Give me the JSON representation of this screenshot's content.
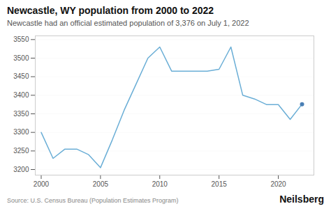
{
  "chart_data": {
    "type": "line",
    "title": "Newcastle, WY population from 2000 to 2022",
    "subtitle": "Newcastle had an official estimated population of 3,376 on July 1, 2022",
    "source": "Source: U.S. Census Bureau (Population Estimates Program)",
    "branding": "Neilsberg",
    "x": [
      2000,
      2001,
      2002,
      2003,
      2004,
      2005,
      2006,
      2007,
      2008,
      2009,
      2010,
      2011,
      2012,
      2013,
      2014,
      2015,
      2016,
      2017,
      2018,
      2019,
      2020,
      2021,
      2022
    ],
    "series": [
      {
        "type": "line",
        "color": "#6aaed6",
        "values": [
          3300,
          3230,
          3255,
          3255,
          3240,
          3205,
          3280,
          3360,
          3430,
          3500,
          3530,
          3465,
          3465,
          3465,
          3465,
          3470,
          3530,
          3400,
          3390,
          3375,
          3375,
          3335,
          3376
        ]
      },
      {
        "type": "scatter",
        "color": "#4a7fb5",
        "values": [
          null,
          null,
          null,
          null,
          null,
          null,
          null,
          null,
          null,
          null,
          null,
          null,
          null,
          null,
          null,
          null,
          null,
          null,
          null,
          null,
          null,
          null,
          3376
        ]
      }
    ],
    "xlim": [
      1999.5,
      2023
    ],
    "xticks": [
      2000,
      2005,
      2010,
      2015,
      2020
    ],
    "ylim": [
      3185,
      3560
    ],
    "yticks": [
      3200,
      3250,
      3300,
      3350,
      3400,
      3450,
      3500,
      3550
    ],
    "grid": true
  }
}
